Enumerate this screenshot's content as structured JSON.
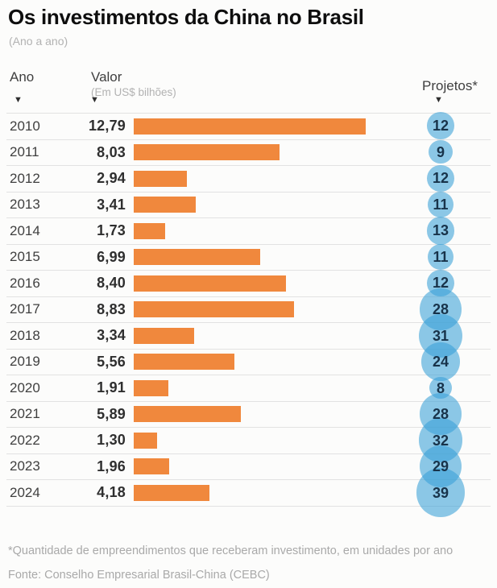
{
  "header": {
    "title": "Os investimentos da China no Brasil",
    "subtitle": "(Ano a ano)"
  },
  "columns": {
    "year_label": "Ano",
    "value_label": "Valor",
    "value_sublabel": "(Em US$ bilhões)",
    "projects_label": "Projetos*",
    "pointer_icon": "▼"
  },
  "chart_data": {
    "type": "bar",
    "title": "Os investimentos da China no Brasil",
    "subtitle": "(Ano a ano)",
    "orientation": "horizontal",
    "categories": [
      "2010",
      "2011",
      "2012",
      "2013",
      "2014",
      "2015",
      "2016",
      "2017",
      "2018",
      "2019",
      "2020",
      "2021",
      "2022",
      "2023",
      "2024"
    ],
    "series": [
      {
        "name": "Valor (Em US$ bilhões)",
        "values": [
          12.79,
          8.03,
          2.94,
          3.41,
          1.73,
          6.99,
          8.4,
          8.83,
          3.34,
          5.56,
          1.91,
          5.89,
          1.3,
          1.96,
          4.18
        ],
        "values_display": [
          "12,79",
          "8,03",
          "2,94",
          "3,41",
          "1,73",
          "6,99",
          "8,40",
          "8,83",
          "3,34",
          "5,56",
          "1,91",
          "5,89",
          "1,30",
          "1,96",
          "4,18"
        ]
      },
      {
        "name": "Projetos",
        "values": [
          12,
          9,
          12,
          11,
          13,
          11,
          12,
          28,
          31,
          24,
          8,
          28,
          32,
          29,
          39
        ]
      }
    ],
    "xlim": [
      0,
      12.79
    ],
    "grid": "horizontal-row-dividers",
    "legend": "none",
    "colors": {
      "bar": "#F0883D",
      "bubble": "rgba(56,160,216,0.58)",
      "bubble_text": "#18334a",
      "divider": "#e2e2e2",
      "title_text": "#0e0e0e",
      "muted_text": "#a9a9a9"
    }
  },
  "footer": {
    "footnote": "*Quantidade de empreendimentos que receberam investimento, em unidades por ano",
    "source": "Fonte: Conselho Empresarial Brasil-China (CEBC)"
  }
}
